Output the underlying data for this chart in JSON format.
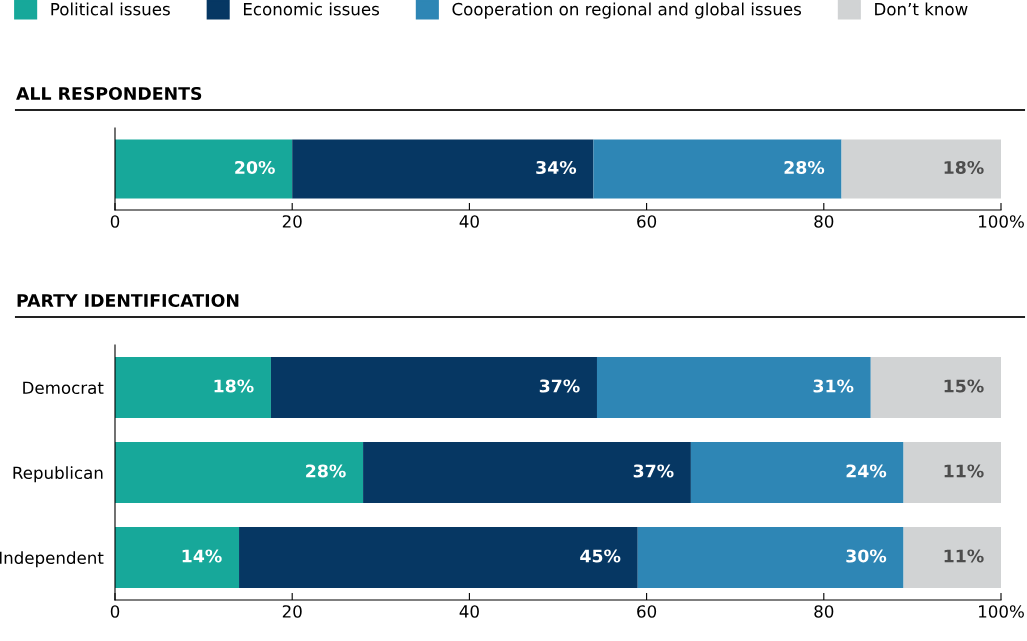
{
  "chart_data": [
    {
      "type": "bar",
      "title": "ALL RESPONDENTS",
      "orientation": "horizontal",
      "stacked": true,
      "categories": [
        null
      ],
      "series": [
        {
          "name": "Political issues",
          "color": "#17a89a",
          "values": [
            20
          ],
          "value_labels": [
            "20%"
          ]
        },
        {
          "name": "Economic issues",
          "color": "#063763",
          "values": [
            34
          ],
          "value_labels": [
            "34%"
          ]
        },
        {
          "name": "Cooperation on regional and global issues",
          "color": "#2e86b5",
          "values": [
            28
          ],
          "value_labels": [
            "28%"
          ]
        },
        {
          "name": "Don’t know",
          "color": "#d1d3d4",
          "values": [
            18
          ],
          "value_labels": [
            "18%"
          ]
        }
      ],
      "xlim": [
        0,
        100
      ],
      "xticks": [
        0,
        20,
        40,
        60,
        80,
        {
          "value": 100,
          "label": "100%"
        }
      ],
      "grid": false,
      "legend": "top left"
    },
    {
      "type": "bar",
      "title": "PARTY IDENTIFICATION",
      "orientation": "horizontal",
      "stacked": true,
      "categories": [
        "Democrat",
        "Republican",
        "Independent"
      ],
      "series": [
        {
          "color": "#17a89a",
          "values": [
            17.6,
            28,
            14
          ],
          "value_labels": [
            "18%",
            "28%",
            "14%"
          ]
        },
        {
          "color": "#063763",
          "values": [
            36.8,
            37,
            45
          ],
          "value_labels": [
            "37%",
            "37%",
            "45%"
          ]
        },
        {
          "color": "#2e86b5",
          "values": [
            30.9,
            24,
            30
          ],
          "value_labels": [
            "31%",
            "24%",
            "30%"
          ]
        },
        {
          "color": "#d1d3d4",
          "values": [
            14.7,
            11,
            11
          ],
          "value_labels": [
            "15%",
            "11%",
            "11%"
          ]
        }
      ],
      "xlim": [
        0,
        100
      ],
      "xticks": [
        0,
        20,
        40,
        60,
        80,
        {
          "value": 100,
          "label": "100%"
        }
      ],
      "grid": false,
      "legend": false
    }
  ]
}
